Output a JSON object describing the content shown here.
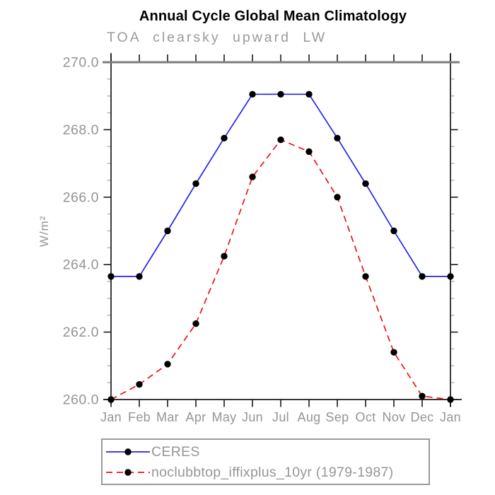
{
  "chart_data": {
    "type": "line",
    "title": "Annual Cycle Global Mean Climatology",
    "subtitle": "TOA clearsky upward LW",
    "ylabel": "W/m²",
    "xlabel": "",
    "categories": [
      "Jan",
      "Feb",
      "Mar",
      "Apr",
      "May",
      "Jun",
      "Jul",
      "Aug",
      "Sep",
      "Oct",
      "Nov",
      "Dec",
      "Jan"
    ],
    "series": [
      {
        "name": "CERES",
        "color": "#2222ee",
        "style": "solid",
        "marker": "black-dot",
        "values": [
          263.65,
          263.65,
          265.0,
          266.4,
          267.75,
          269.05,
          269.05,
          269.05,
          267.75,
          266.4,
          265.0,
          263.65,
          263.65
        ]
      },
      {
        "name": "noclubbtop_iffixplus_10yr (1979-1987)",
        "color": "#ee1111",
        "style": "dashed",
        "marker": "black-dot",
        "values": [
          260.0,
          260.45,
          261.05,
          262.25,
          264.25,
          266.6,
          267.7,
          267.35,
          266.0,
          263.65,
          261.4,
          260.1,
          260.0
        ]
      }
    ],
    "ylim": [
      260.0,
      270.0
    ],
    "y_major_ticks": [
      260.0,
      262.0,
      264.0,
      266.0,
      268.0,
      270.0
    ],
    "y_minor_interval": 0.5,
    "grid": "off",
    "legend_position": "bottom-left"
  },
  "colors": {
    "title_text": "#000000",
    "muted_text": "#949494",
    "axis": "#1a1a1a",
    "frame_top": "#7d7d7d",
    "minor_tick": "#b3b3b3",
    "legend_border": "#9b9b9b",
    "marker": "#000000",
    "background": "#ffffff"
  }
}
